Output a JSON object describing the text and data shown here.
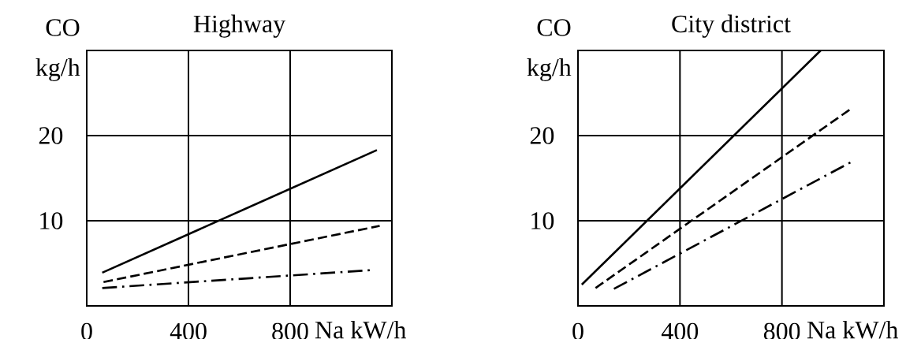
{
  "chart_data": [
    {
      "type": "line",
      "title": "Highway",
      "xlabel": "Na kW/h",
      "ylabel": "CO kg/h",
      "xlim": [
        0,
        1200
      ],
      "ylim": [
        0,
        30
      ],
      "xticks": [
        0,
        400,
        800
      ],
      "yticks": [
        10,
        20
      ],
      "grid": true,
      "series": [
        {
          "color": "#000000",
          "line_style": "solid",
          "x": [
            61,
            1141
          ],
          "values": [
            3.9,
            18.3
          ]
        },
        {
          "color": "#000000",
          "line_style": "dashed",
          "x": [
            66,
            1152
          ],
          "values": [
            2.8,
            9.4
          ]
        },
        {
          "color": "#000000",
          "line_style": "dashdot",
          "x": [
            61,
            1118
          ],
          "values": [
            2.1,
            4.2
          ]
        }
      ]
    },
    {
      "type": "line",
      "title": "City district",
      "xlabel": "Na kW/h",
      "ylabel": "CO kg/h",
      "xlim": [
        0,
        1200
      ],
      "ylim": [
        0,
        30
      ],
      "xticks": [
        0,
        400,
        800
      ],
      "yticks": [
        10,
        20
      ],
      "grid": true,
      "series": [
        {
          "color": "#000000",
          "line_style": "solid",
          "x": [
            15,
            952
          ],
          "values": [
            2.5,
            30
          ]
        },
        {
          "color": "#000000",
          "line_style": "dashed",
          "x": [
            69,
            1073
          ],
          "values": [
            2.1,
            23.2
          ]
        },
        {
          "color": "#000000",
          "line_style": "dashdot",
          "x": [
            141,
            1078
          ],
          "values": [
            2.0,
            17.0
          ]
        }
      ]
    }
  ]
}
